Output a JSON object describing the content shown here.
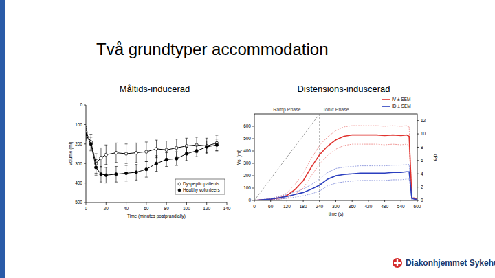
{
  "title": "Två grundtyper accommodation",
  "logo_text": "Diakonhjemmet Sykehus",
  "chart_data": [
    {
      "type": "line",
      "title": "Måltids-inducerad",
      "xlabel": "Time (minutes postprandially)",
      "ylabel": "Volume (ml)",
      "x": [
        0,
        5,
        10,
        15,
        20,
        30,
        40,
        50,
        60,
        70,
        80,
        90,
        100,
        110,
        120,
        130
      ],
      "xlim": [
        0,
        140
      ],
      "xticks": [
        0,
        20,
        40,
        60,
        80,
        100,
        120,
        140
      ],
      "ylim": [
        500,
        0
      ],
      "yticks": [
        0,
        100,
        200,
        300,
        400,
        500
      ],
      "grid": false,
      "legend": "lower right",
      "series": [
        {
          "name": "Dyspeptic patients",
          "color": "#000000",
          "marker": "circle-open",
          "values": [
            140,
            190,
            300,
            270,
            255,
            245,
            250,
            245,
            240,
            225,
            230,
            220,
            210,
            205,
            210,
            195
          ],
          "errors": [
            30,
            40,
            50,
            50,
            50,
            50,
            50,
            50,
            50,
            45,
            45,
            45,
            40,
            40,
            40,
            40
          ]
        },
        {
          "name": "Healthy volunteers",
          "color": "#000000",
          "marker": "circle",
          "values": [
            150,
            200,
            320,
            355,
            360,
            355,
            350,
            345,
            330,
            300,
            280,
            275,
            250,
            235,
            215,
            205
          ],
          "errors": [
            30,
            35,
            40,
            40,
            40,
            40,
            40,
            40,
            40,
            40,
            35,
            35,
            35,
            30,
            30,
            30
          ]
        }
      ]
    },
    {
      "type": "line",
      "title": "Distensions-induscerad",
      "xlabel": "time (s)",
      "ylabel": "Vol (ml)",
      "y2label": "kPa",
      "x": [
        0,
        30,
        60,
        90,
        120,
        150,
        180,
        210,
        240,
        270,
        300,
        330,
        360,
        390,
        420,
        450,
        480,
        510,
        540,
        560,
        570,
        580,
        600
      ],
      "xlim": [
        0,
        600
      ],
      "xticks": [
        0,
        60,
        120,
        180,
        240,
        300,
        360,
        420,
        480,
        540,
        600
      ],
      "ylim": [
        0,
        700
      ],
      "yticks": [
        0,
        100,
        200,
        300,
        400,
        500,
        600
      ],
      "y2lim": [
        0,
        13
      ],
      "y2ticks": [
        0,
        2,
        4,
        6,
        8,
        10,
        12
      ],
      "grid": false,
      "legend": "upper right",
      "annotations": [
        {
          "text": "Ramp Phase",
          "x": 120
        },
        {
          "text": "Tonic Phase",
          "x": 300
        }
      ],
      "ramp_line": {
        "x": [
          0,
          240
        ],
        "y": [
          0,
          700
        ]
      },
      "phase_boundary": 240,
      "series": [
        {
          "name": "IV ± SEM",
          "color": "#e0332f",
          "values": [
            0,
            5,
            10,
            20,
            40,
            90,
            160,
            270,
            370,
            440,
            490,
            520,
            530,
            530,
            530,
            530,
            525,
            530,
            525,
            530,
            520,
            20,
            10
          ],
          "errors": [
            0,
            3,
            5,
            10,
            20,
            40,
            60,
            70,
            75,
            75,
            75,
            75,
            75,
            75,
            75,
            75,
            75,
            75,
            75,
            75,
            75,
            10,
            5
          ]
        },
        {
          "name": "ID ± SEM",
          "color": "#2b3fbf",
          "axis": "y2",
          "values": [
            0,
            0.1,
            0.2,
            0.4,
            0.6,
            0.9,
            1.2,
            1.7,
            2.3,
            3.2,
            3.7,
            3.9,
            4.0,
            4.1,
            4.1,
            4.1,
            4.1,
            4.2,
            4.2,
            4.3,
            4.3,
            0.3,
            0.1
          ],
          "errors": [
            0,
            0.05,
            0.1,
            0.2,
            0.3,
            0.4,
            0.5,
            0.7,
            0.9,
            1,
            1.1,
            1.1,
            1.1,
            1.1,
            1.1,
            1.1,
            1.1,
            1.1,
            1.1,
            1.1,
            1.1,
            0.2,
            0.05
          ]
        }
      ]
    }
  ]
}
